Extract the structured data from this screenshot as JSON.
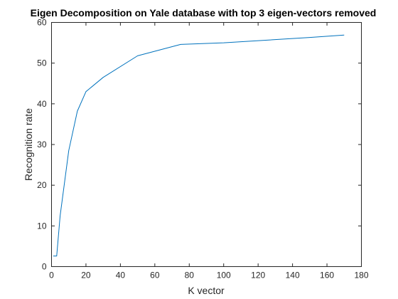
{
  "chart_data": {
    "type": "line",
    "title": "Eigen Decomposition on Yale database with top 3 eigen-vectors removed",
    "xlabel": "K vector",
    "ylabel": "Recognition rate",
    "xlim": [
      0,
      180
    ],
    "ylim": [
      0,
      60
    ],
    "xticks": [
      0,
      20,
      40,
      60,
      80,
      100,
      120,
      140,
      160,
      180
    ],
    "yticks": [
      0,
      10,
      20,
      30,
      40,
      50,
      60
    ],
    "grid": false,
    "box": true,
    "series": [
      {
        "color": "#0072bd",
        "x": [
          1,
          3,
          5,
          10,
          15,
          20,
          30,
          50,
          75,
          100,
          150,
          170
        ],
        "y": [
          2.6,
          2.6,
          12.5,
          28.5,
          38.2,
          43.0,
          46.5,
          51.8,
          54.6,
          55.0,
          56.3,
          56.9
        ]
      }
    ]
  }
}
